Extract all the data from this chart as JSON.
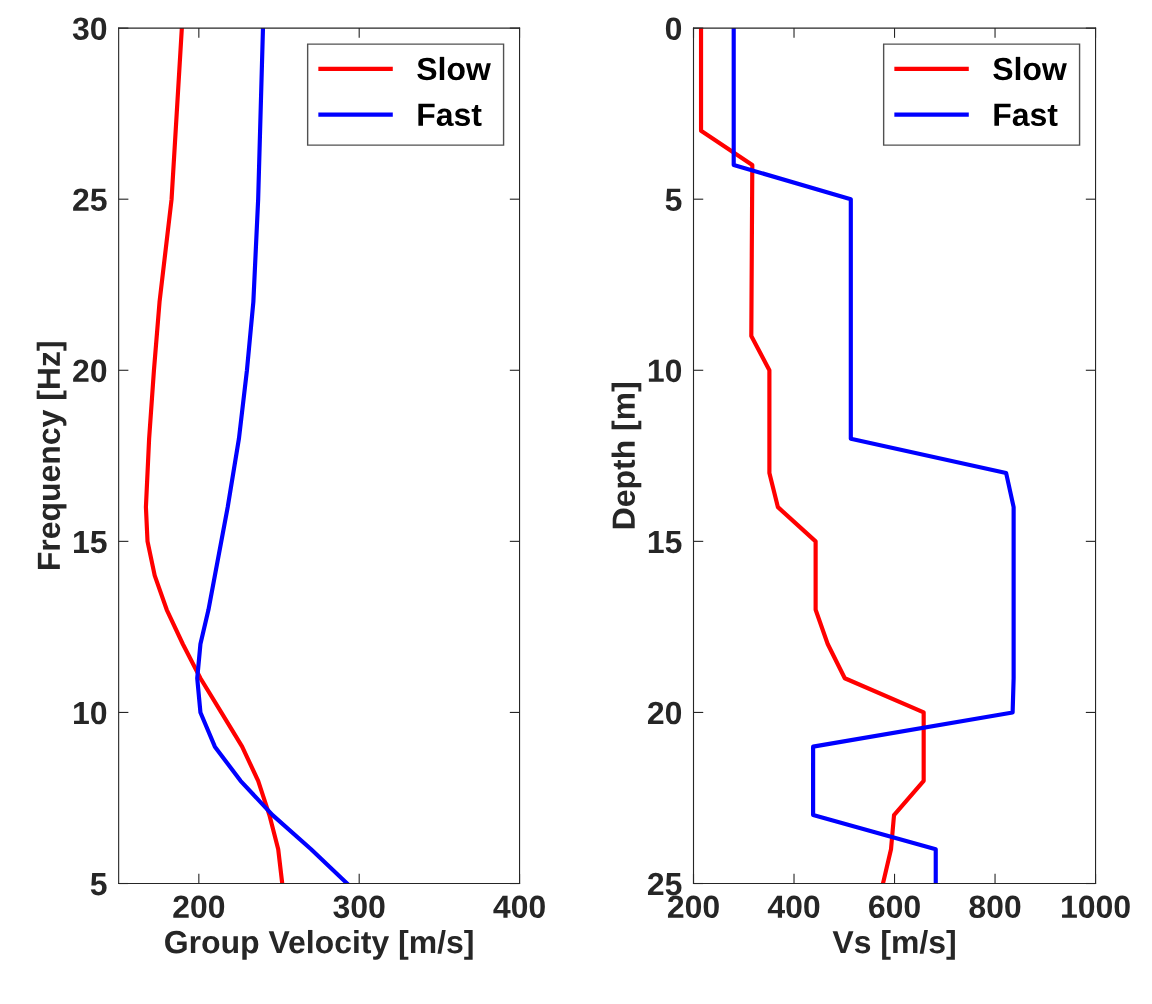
{
  "chart_data": [
    {
      "type": "line",
      "xlabel": "Group Velocity [m/s]",
      "ylabel": "Frequency [Hz]",
      "orientation": "horizontal",
      "xlim": [
        150,
        400
      ],
      "xticks": [
        200,
        300,
        400
      ],
      "ylim": [
        5,
        30
      ],
      "yticks": [
        5,
        10,
        15,
        20,
        25,
        30
      ],
      "legend": "top right",
      "grid": false,
      "x": [
        5,
        6,
        7,
        8,
        9,
        10,
        11,
        12,
        13,
        14,
        15,
        16,
        18,
        20,
        22,
        25,
        30
      ],
      "series": [
        {
          "name": "Slow",
          "color": "#ff0000",
          "values": [
            252,
            249.5,
            244,
            237,
            227,
            214,
            201,
            190,
            180,
            172.5,
            168,
            167,
            169,
            172,
            175.5,
            183,
            189.4
          ]
        },
        {
          "name": "Fast",
          "color": "#0000ff",
          "values": [
            292.5,
            270,
            246,
            226,
            210,
            201,
            199,
            201,
            206,
            210,
            214,
            218,
            225,
            230,
            234,
            237,
            240
          ]
        }
      ]
    },
    {
      "type": "line",
      "xlabel": "Vs [m/s]",
      "ylabel": "Depth [m]",
      "orientation": "horizontal",
      "xlim": [
        200,
        1000
      ],
      "xticks": [
        200,
        400,
        600,
        800,
        1000
      ],
      "ylim": [
        25,
        0
      ],
      "yticks": [
        0,
        5,
        10,
        15,
        20,
        25
      ],
      "legend": "top right",
      "grid": false,
      "series": [
        {
          "name": "Slow",
          "color": "#ff0000",
          "x": [
            0,
            3,
            4,
            9,
            10,
            13,
            14,
            15,
            17,
            18,
            19,
            20,
            22,
            23,
            24,
            25
          ],
          "values": [
            215,
            215,
            317,
            315,
            351,
            351,
            368,
            443,
            443,
            467,
            501,
            658,
            658,
            599,
            593,
            577
          ]
        },
        {
          "name": "Fast",
          "color": "#0000ff",
          "x": [
            0,
            4,
            5,
            12,
            13,
            14,
            19,
            20,
            21,
            23,
            24,
            25
          ],
          "values": [
            280,
            280,
            513,
            513,
            822,
            837,
            837,
            835,
            438,
            438,
            682,
            682
          ]
        }
      ]
    }
  ]
}
